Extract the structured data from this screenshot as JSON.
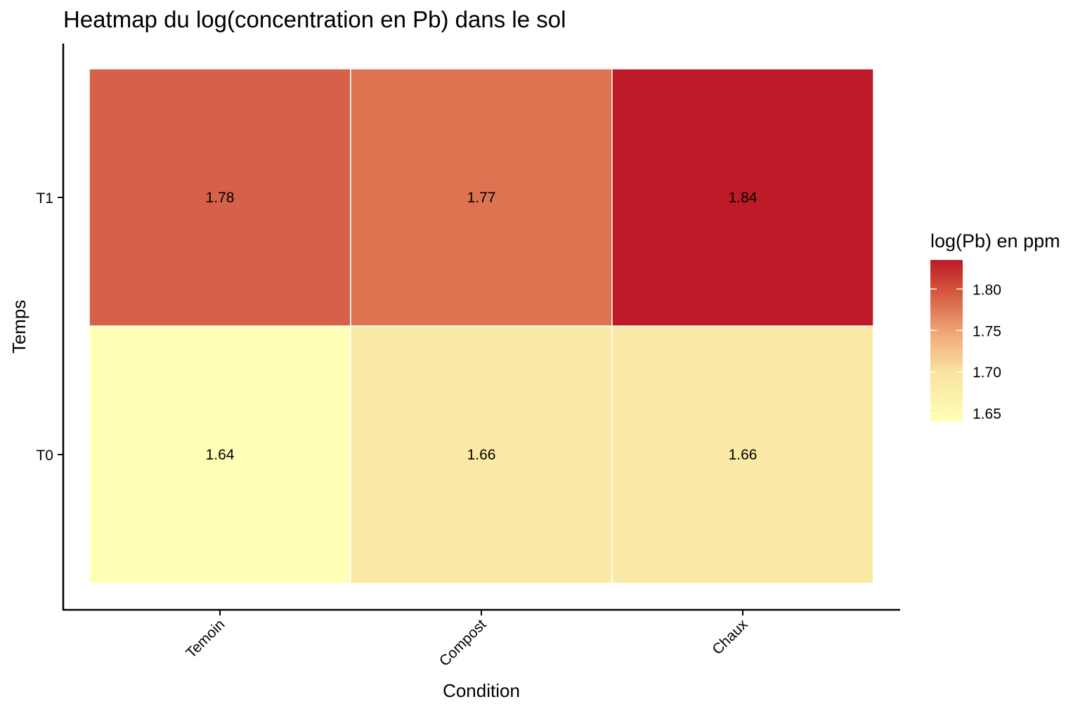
{
  "chart_data": {
    "type": "heatmap",
    "title": "Heatmap du log(concentration en Pb) dans le sol",
    "xlabel": "Condition",
    "ylabel": "Temps",
    "x_categories": [
      "Temoin",
      "Compost",
      "Chaux"
    ],
    "y_categories": [
      "T0",
      "T1"
    ],
    "values": [
      [
        1.64,
        1.66,
        1.66
      ],
      [
        1.78,
        1.77,
        1.84
      ]
    ],
    "value_labels": [
      [
        "1.64",
        "1.66",
        "1.66"
      ],
      [
        "1.78",
        "1.77",
        "1.84"
      ]
    ],
    "legend": {
      "title": "log(Pb) en ppm",
      "ticks": [
        "1.65",
        "1.70",
        "1.75",
        "1.80"
      ],
      "range": [
        1.64,
        1.84
      ],
      "placement": "right",
      "colors": [
        "#ffffb2",
        "#fecc5c",
        "#fd8d3c",
        "#f03b20",
        "#bd1b27"
      ]
    },
    "grid": false
  }
}
